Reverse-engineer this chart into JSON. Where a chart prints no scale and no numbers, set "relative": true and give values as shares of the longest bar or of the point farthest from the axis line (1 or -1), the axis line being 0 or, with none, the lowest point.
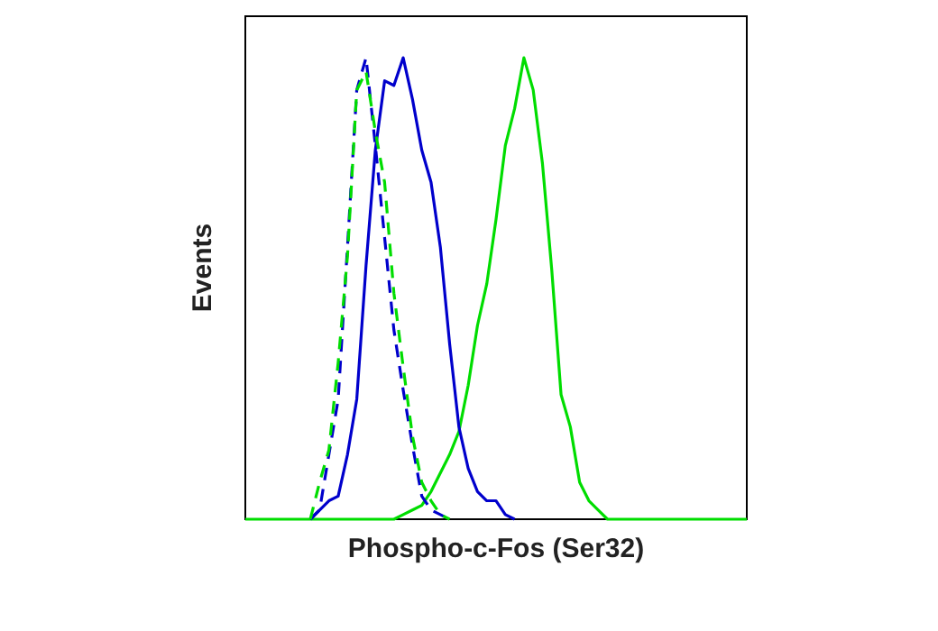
{
  "chart_data": {
    "type": "line",
    "relative": true,
    "xlabel": "Phospho-c-Fos (Ser32)",
    "ylabel": "Events",
    "grid": false,
    "legend": false,
    "marker": "none",
    "categories": [
      null,
      null,
      null,
      null,
      null,
      null,
      null,
      null,
      null,
      null,
      null,
      null,
      null,
      null,
      null,
      null,
      null,
      null,
      null,
      null,
      null,
      null,
      null,
      null,
      null,
      null,
      null,
      null,
      null,
      null,
      null,
      null,
      null,
      null,
      null,
      null,
      null,
      null,
      null,
      null,
      null,
      null,
      null,
      null,
      null,
      null,
      null,
      null,
      null,
      null,
      null,
      null,
      null,
      null,
      null
    ],
    "series": [
      {
        "color": "#00dd00",
        "line_style": "dashed",
        "values": [
          null,
          null,
          null,
          null,
          null,
          null,
          null,
          0,
          0.08,
          0.15,
          0.34,
          0.57,
          0.93,
          0.97,
          0.84,
          0.73,
          0.49,
          0.33,
          0.18,
          0.08,
          0.04,
          0.01,
          0,
          null,
          null,
          null,
          null,
          null,
          null,
          null,
          null,
          null,
          null,
          null,
          null,
          null,
          null,
          null,
          null,
          null,
          null,
          null,
          null,
          null,
          null,
          null,
          null,
          null,
          null,
          null,
          null,
          null,
          null,
          null,
          null
        ]
      },
      {
        "color": "#0000cc",
        "line_style": "dashed",
        "values": [
          null,
          null,
          null,
          null,
          null,
          null,
          null,
          0,
          0.02,
          0.14,
          0.26,
          0.59,
          0.93,
          1.0,
          0.81,
          0.61,
          0.41,
          0.28,
          0.16,
          0.05,
          0.02,
          0.01,
          0,
          null,
          null,
          null,
          null,
          null,
          null,
          null,
          null,
          null,
          null,
          null,
          null,
          null,
          null,
          null,
          null,
          null,
          null,
          null,
          null,
          null,
          null,
          null,
          null,
          null,
          null,
          null,
          null,
          null,
          null,
          null,
          null
        ]
      },
      {
        "color": "#0000cc",
        "line_style": "solid",
        "values": [
          null,
          null,
          null,
          null,
          null,
          null,
          null,
          0,
          0.02,
          0.04,
          0.05,
          0.14,
          0.26,
          0.55,
          0.8,
          0.95,
          0.94,
          1.0,
          0.91,
          0.8,
          0.73,
          0.59,
          0.38,
          0.2,
          0.11,
          0.06,
          0.04,
          0.04,
          0.01,
          0,
          null,
          null,
          null,
          null,
          null,
          null,
          null,
          null,
          null,
          null,
          null,
          null,
          null,
          null,
          null,
          null,
          null,
          null,
          null,
          null,
          null,
          null,
          null,
          null,
          null
        ]
      },
      {
        "color": "#00dd00",
        "line_style": "solid",
        "values": [
          0,
          0,
          0,
          0,
          0,
          0,
          0,
          0,
          0,
          0,
          0,
          0,
          0,
          0,
          0,
          0,
          0,
          0.01,
          0.02,
          0.03,
          0.06,
          0.1,
          0.14,
          0.19,
          0.29,
          0.42,
          0.51,
          0.65,
          0.81,
          0.89,
          1.0,
          0.93,
          0.77,
          0.54,
          0.27,
          0.2,
          0.08,
          0.04,
          0.02,
          0,
          0,
          0,
          0,
          0,
          0,
          0,
          0,
          0,
          0,
          0,
          0,
          0,
          0,
          0,
          0
        ]
      }
    ]
  }
}
